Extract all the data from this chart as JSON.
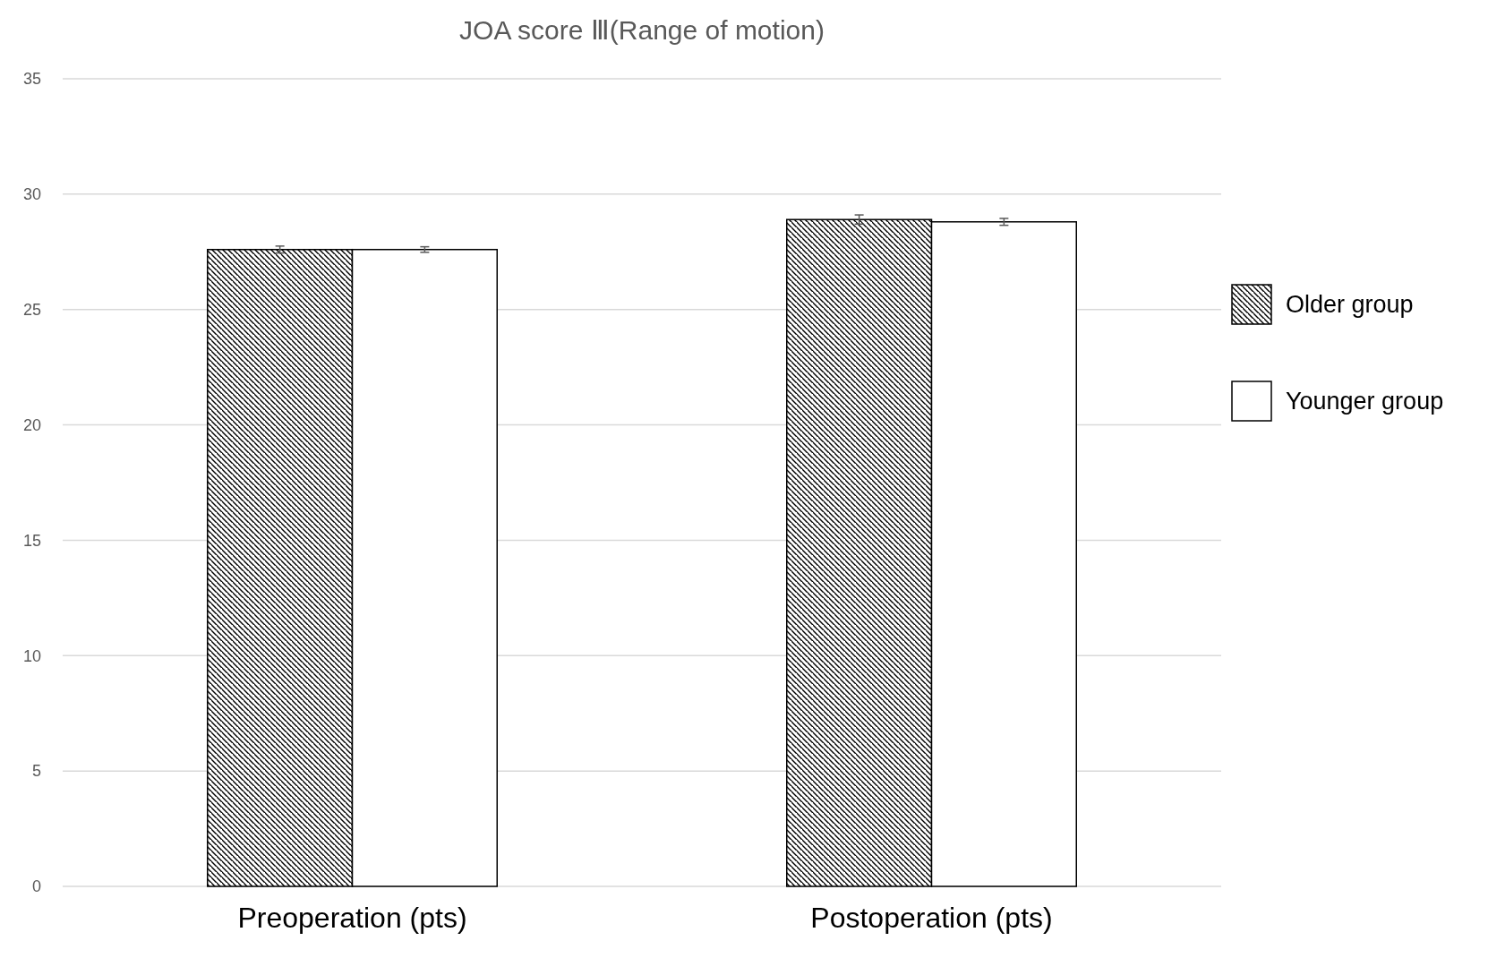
{
  "chart_data": {
    "type": "bar",
    "title": "JOA score Ⅲ(Range of motion)",
    "categories": [
      "Preoperation (pts)",
      "Postoperation (pts)"
    ],
    "series": [
      {
        "name": "Older group",
        "color": "#000000",
        "values": [
          27.6,
          28.9
        ],
        "errors": [
          0.15,
          0.2
        ]
      },
      {
        "name": "Younger group",
        "color": "#ffffff",
        "values": [
          27.6,
          28.8
        ],
        "errors": [
          0.12,
          0.15
        ]
      }
    ],
    "ylim": [
      0,
      35
    ],
    "yticks": [
      0,
      5,
      10,
      15,
      20,
      25,
      30,
      35
    ],
    "grid": "y",
    "legend": "right"
  }
}
